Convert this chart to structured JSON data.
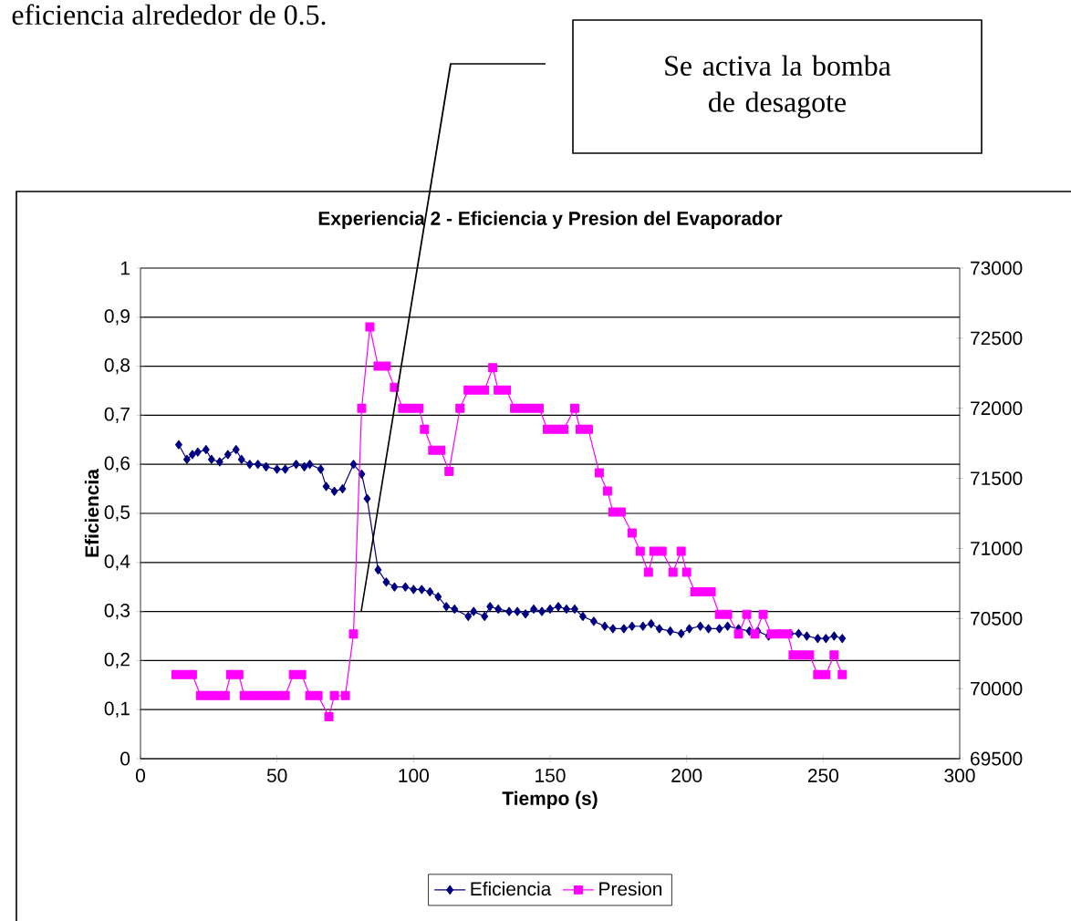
{
  "chart_data": {
    "type": "line",
    "title": "Experiencia 2 - Eficiencia y Presion del Evaporador",
    "xlabel": "Tiempo (s)",
    "ylabel": "Eficiencia",
    "xlim": [
      0,
      300
    ],
    "xticks": [
      0,
      50,
      100,
      150,
      200,
      250,
      300
    ],
    "ylim": [
      0,
      1
    ],
    "yticks": [
      0,
      {
        "value": 0.1,
        "label": "0,1"
      },
      {
        "value": 0.2,
        "label": "0,2"
      },
      {
        "value": 0.3,
        "label": "0,3"
      },
      {
        "value": 0.4,
        "label": "0,4"
      },
      {
        "value": 0.5,
        "label": "0,5"
      },
      {
        "value": 0.6,
        "label": "0,6"
      },
      {
        "value": 0.7,
        "label": "0,7"
      },
      {
        "value": 0.8,
        "label": "0,8"
      },
      {
        "value": 0.9,
        "label": "0,9"
      },
      1
    ],
    "y2lim": [
      69500,
      73000
    ],
    "y2ticks": [
      69500,
      70000,
      70500,
      71000,
      71500,
      72000,
      72500,
      73000
    ],
    "grid": "y",
    "legend": "bottom",
    "series": [
      {
        "name": "Eficiencia",
        "color": "#000080",
        "marker": "diamond",
        "line_style": "solid",
        "x": [
          14,
          17,
          19,
          21,
          24,
          26,
          29,
          32,
          35,
          37,
          40,
          43,
          46,
          50,
          53,
          57,
          60,
          62,
          66,
          68,
          71,
          74,
          78,
          81,
          83,
          87,
          90,
          93,
          97,
          100,
          103,
          106,
          109,
          112,
          115,
          120,
          122,
          126,
          128,
          131,
          135,
          138,
          141,
          144,
          147,
          150,
          153,
          156,
          159,
          162,
          166,
          170,
          173,
          177,
          180,
          184,
          187,
          190,
          194,
          198,
          201,
          205,
          208,
          212,
          215,
          219,
          223,
          226,
          230,
          234,
          238,
          241,
          244,
          248,
          251,
          254,
          257
        ],
        "values": [
          0.64,
          0.61,
          0.62,
          0.625,
          0.63,
          0.61,
          0.605,
          0.62,
          0.63,
          0.61,
          0.6,
          0.6,
          0.595,
          0.59,
          0.59,
          0.6,
          0.595,
          0.6,
          0.59,
          0.555,
          0.545,
          0.55,
          0.6,
          0.58,
          0.53,
          0.385,
          0.36,
          0.35,
          0.35,
          0.345,
          0.345,
          0.34,
          0.33,
          0.31,
          0.305,
          0.29,
          0.3,
          0.29,
          0.31,
          0.305,
          0.3,
          0.3,
          0.295,
          0.305,
          0.3,
          0.305,
          0.31,
          0.305,
          0.305,
          0.29,
          0.28,
          0.27,
          0.265,
          0.265,
          0.27,
          0.27,
          0.275,
          0.265,
          0.26,
          0.255,
          0.265,
          0.27,
          0.265,
          0.265,
          0.27,
          0.265,
          0.26,
          0.26,
          0.25,
          0.255,
          0.255,
          0.255,
          0.25,
          0.245,
          0.245,
          0.25,
          0.245
        ]
      },
      {
        "name": "Presion",
        "color": "#ff00ff",
        "marker": "square",
        "line_style": "solid",
        "axis": "y2",
        "x": [
          13,
          16,
          19,
          22,
          25,
          28,
          31,
          33,
          36,
          38,
          41,
          44,
          47,
          50,
          53,
          56,
          59,
          62,
          65,
          69,
          71,
          75,
          78,
          81,
          84,
          87,
          90,
          93,
          96,
          99,
          102,
          104,
          107,
          110,
          113,
          117,
          120,
          123,
          126,
          129,
          131,
          134,
          137,
          140,
          143,
          146,
          149,
          152,
          155,
          159,
          161,
          164,
          168,
          171,
          173,
          176,
          180,
          183,
          186,
          188,
          191,
          195,
          198,
          200,
          203,
          206,
          209,
          212,
          215,
          219,
          222,
          225,
          228,
          231,
          234,
          237,
          239,
          242,
          245,
          248,
          251,
          254,
          257
        ],
        "values": [
          70100,
          70100,
          70100,
          69950,
          69950,
          69950,
          69950,
          70100,
          70100,
          69950,
          69950,
          69950,
          69950,
          69950,
          69950,
          70100,
          70100,
          69950,
          69950,
          69800,
          69950,
          69950,
          70390,
          72000,
          72580,
          72300,
          72300,
          72150,
          72000,
          72000,
          72000,
          71850,
          71700,
          71700,
          71550,
          72000,
          72130,
          72130,
          72130,
          72290,
          72130,
          72130,
          72000,
          72000,
          72000,
          72000,
          71850,
          71850,
          71850,
          72000,
          71850,
          71850,
          71540,
          71410,
          71260,
          71260,
          71110,
          70980,
          70830,
          70980,
          70980,
          70830,
          70980,
          70830,
          70690,
          70690,
          70690,
          70530,
          70530,
          70390,
          70530,
          70390,
          70530,
          70390,
          70390,
          70390,
          70240,
          70240,
          70240,
          70100,
          70100,
          70240,
          70100
        ]
      }
    ],
    "annotations": [
      "eficiencia alrededor de 0.5.",
      "Se activa la bomba de desagote"
    ]
  }
}
